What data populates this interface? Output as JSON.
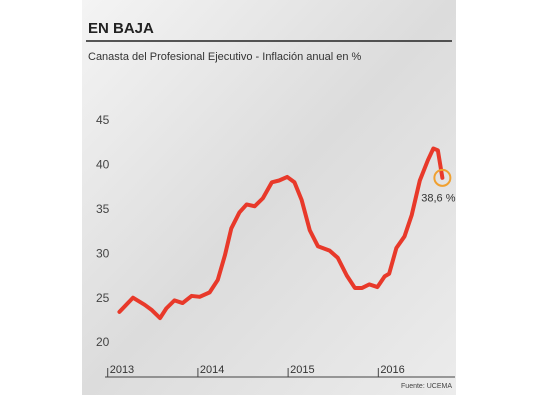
{
  "chart_data": {
    "type": "line",
    "title": "EN BAJA",
    "subtitle": "Canasta del Profesional Ejecutivo - Inflación anual en %",
    "x": [
      2013.13,
      2013.28,
      2013.41,
      2013.49,
      2013.58,
      2013.65,
      2013.74,
      2013.83,
      2013.93,
      2014.02,
      2014.13,
      2014.22,
      2014.3,
      2014.37,
      2014.46,
      2014.54,
      2014.63,
      2014.72,
      2014.82,
      2014.9,
      2014.99,
      2015.07,
      2015.15,
      2015.24,
      2015.33,
      2015.46,
      2015.55,
      2015.65,
      2015.74,
      2015.82,
      2015.9,
      2015.99,
      2016.07,
      2016.12,
      2016.2,
      2016.29,
      2016.37,
      2016.46,
      2016.55,
      2016.61,
      2016.66,
      2016.71
    ],
    "series": [
      {
        "name": "Inflación anual",
        "color": "#e8392a",
        "values": [
          23.5,
          25.1,
          24.3,
          23.7,
          22.8,
          23.9,
          24.8,
          24.5,
          25.3,
          25.2,
          25.7,
          27.1,
          29.9,
          32.9,
          34.7,
          35.6,
          35.4,
          36.3,
          38.1,
          38.3,
          38.7,
          38.1,
          36.1,
          32.7,
          30.9,
          30.4,
          29.6,
          27.6,
          26.2,
          26.2,
          26.6,
          26.3,
          27.5,
          27.8,
          30.7,
          32.0,
          34.4,
          38.3,
          40.6,
          41.9,
          41.7,
          38.6
        ]
      }
    ],
    "annotation": "38,6 %",
    "annotation_color": "#f0a030",
    "xlim": [
      2012.97,
      2016.85
    ],
    "xticks": [
      2013,
      2014,
      2015,
      2016
    ],
    "ylim": [
      20,
      45
    ],
    "yticks": [
      20,
      25,
      30,
      35,
      40,
      45
    ],
    "grid": false,
    "source": "Fuente: UCEMA"
  }
}
